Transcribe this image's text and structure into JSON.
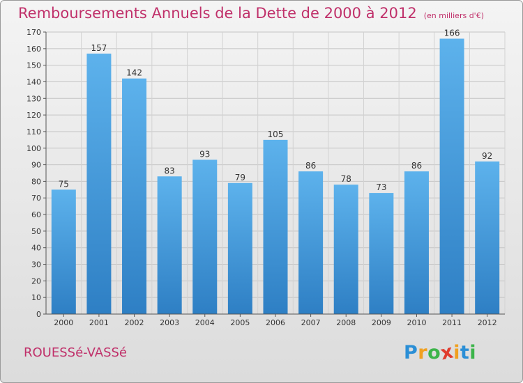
{
  "chart_data": {
    "type": "bar",
    "title": "Remboursements Annuels de la Dette de 2000 à 2012",
    "subtitle": "(en milliers d'€)",
    "categories": [
      "2000",
      "2001",
      "2002",
      "2003",
      "2004",
      "2005",
      "2006",
      "2007",
      "2008",
      "2009",
      "2010",
      "2011",
      "2012"
    ],
    "values": [
      75,
      157,
      142,
      83,
      93,
      79,
      105,
      86,
      78,
      73,
      86,
      166,
      92
    ],
    "ylim": [
      0,
      170
    ],
    "yticks": [
      0,
      10,
      20,
      30,
      40,
      50,
      60,
      70,
      80,
      90,
      100,
      110,
      120,
      130,
      140,
      150,
      160,
      170
    ],
    "grid": true,
    "bar_color": "#4ea3e0"
  },
  "place_name": "ROUESSé-VASSé",
  "logo": {
    "letters": [
      "P",
      "r",
      "o",
      "x",
      "i",
      "t",
      "i"
    ],
    "colors": [
      "#2b8fd6",
      "#f0a020",
      "#3cb44a",
      "#e03b2e",
      "#f0a020",
      "#2b8fd6",
      "#3cb44a"
    ]
  }
}
